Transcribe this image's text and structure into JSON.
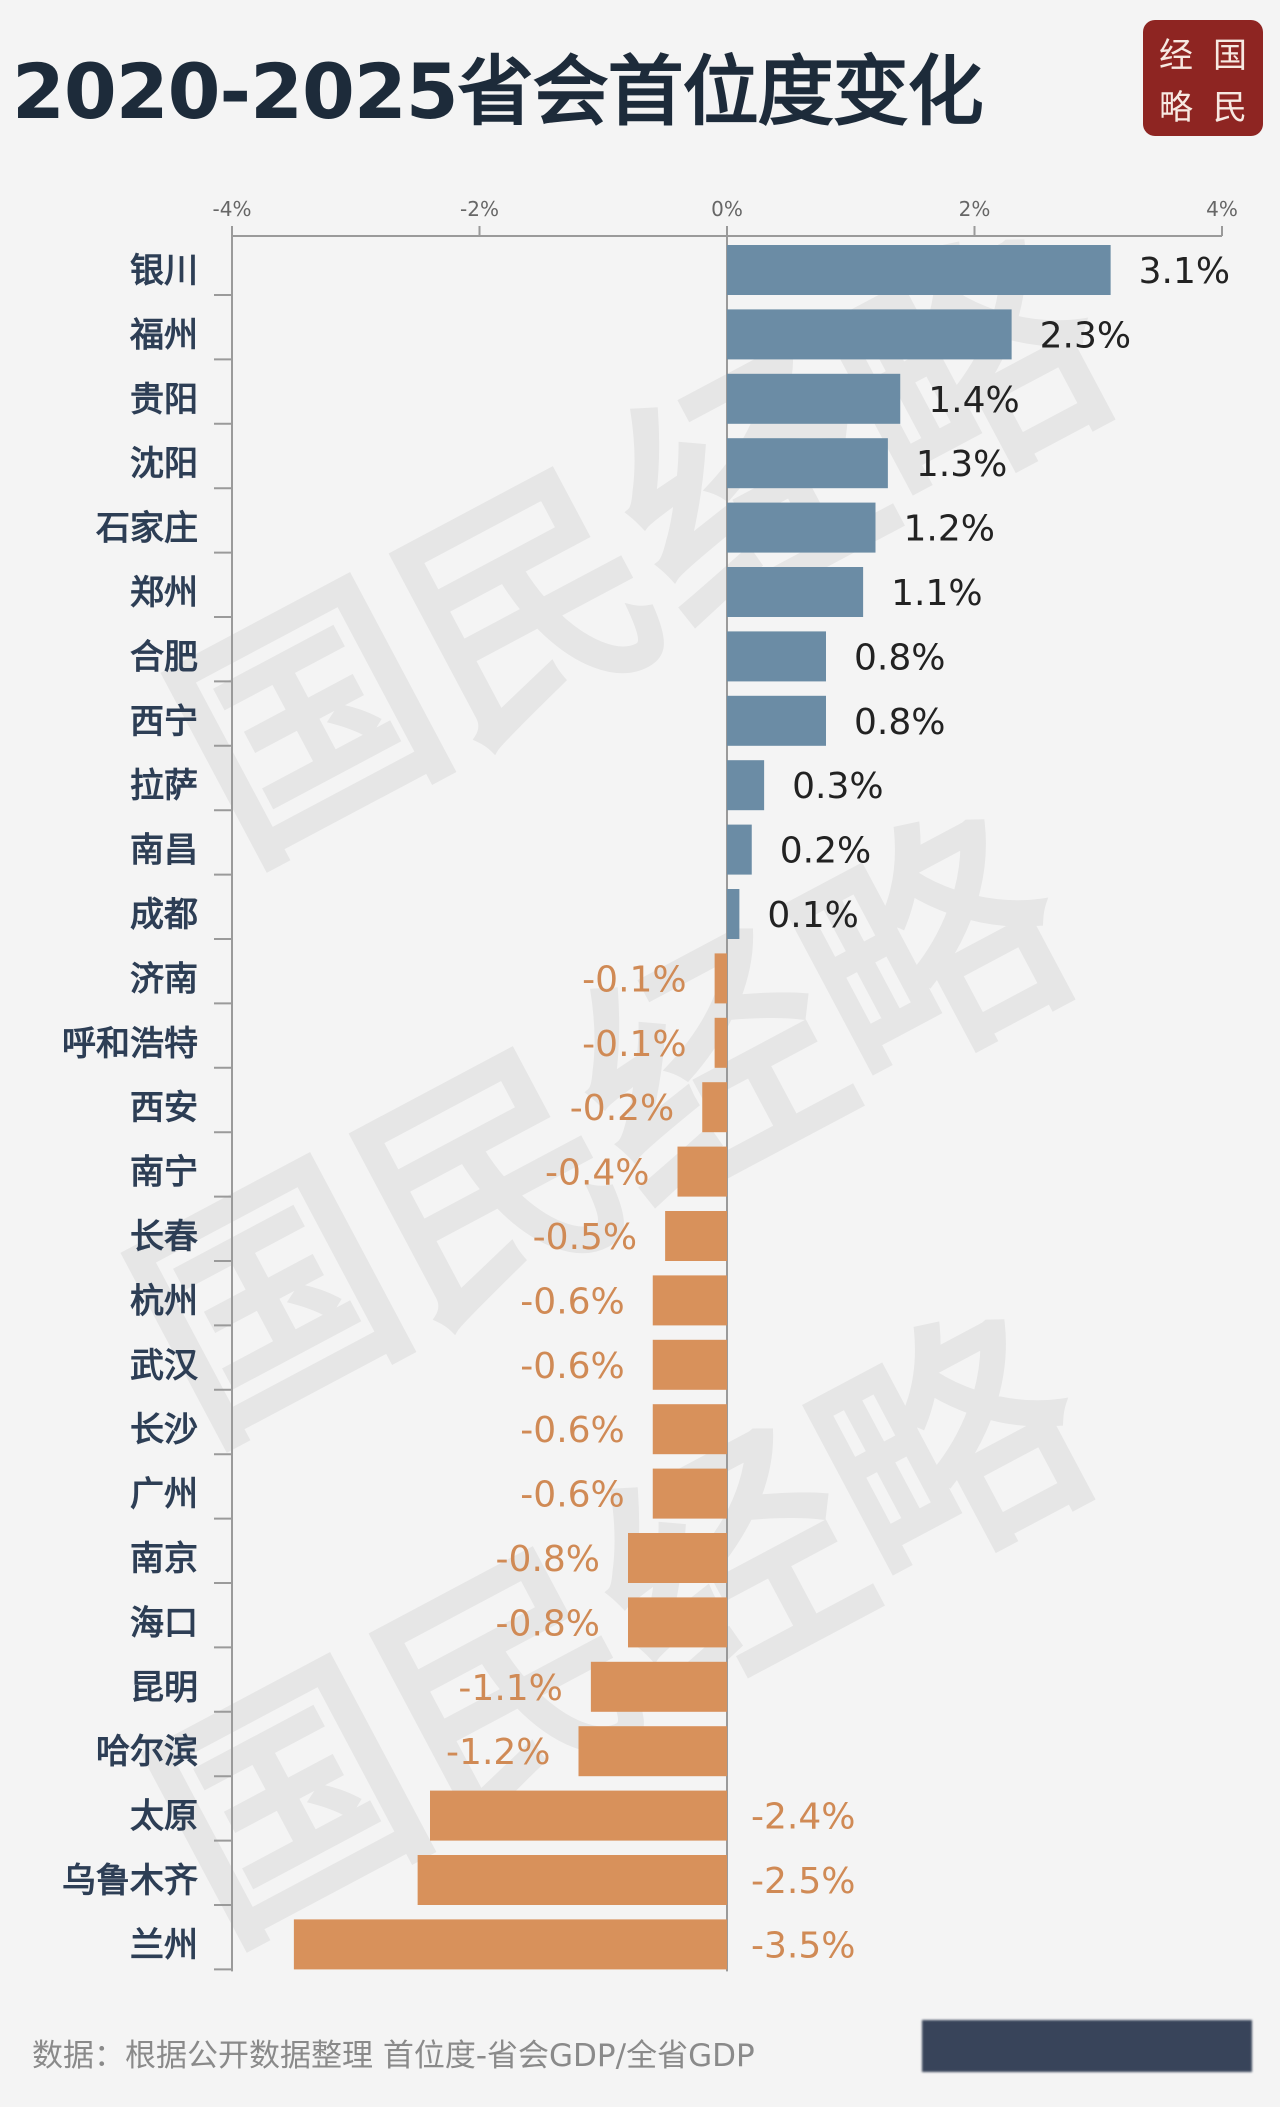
{
  "header": {
    "title": "2020-2025省会首位度变化"
  },
  "logo": {
    "chars": [
      "经",
      "国",
      "略",
      "民"
    ]
  },
  "footer": {
    "source": "数据：根据公开数据整理 首位度-省会GDP/全省GDP"
  },
  "watermark": {
    "text": "国民经略"
  },
  "colors": {
    "positive": "#6b8ca5",
    "negative": "#d8915b",
    "positive_label": "#222222",
    "negative_label": "#d08a55",
    "category": "#2d3e55"
  },
  "chart_data": {
    "type": "bar",
    "orientation": "horizontal",
    "title": "2020-2025省会首位度变化",
    "xlim": [
      -4,
      4
    ],
    "xticks": [
      -4,
      -2,
      0,
      2,
      4
    ],
    "xtick_labels": [
      "-4%",
      "-2%",
      "0%",
      "2%",
      "4%"
    ],
    "value_suffix": "%",
    "grid": false,
    "categories": [
      "银川",
      "福州",
      "贵阳",
      "沈阳",
      "石家庄",
      "郑州",
      "合肥",
      "西宁",
      "拉萨",
      "南昌",
      "成都",
      "济南",
      "呼和浩特",
      "西安",
      "南宁",
      "长春",
      "杭州",
      "武汉",
      "长沙",
      "广州",
      "南京",
      "海口",
      "昆明",
      "哈尔滨",
      "太原",
      "乌鲁木齐",
      "兰州"
    ],
    "values": [
      3.1,
      2.3,
      1.4,
      1.3,
      1.2,
      1.1,
      0.8,
      0.8,
      0.3,
      0.2,
      0.1,
      -0.1,
      -0.1,
      -0.2,
      -0.4,
      -0.5,
      -0.6,
      -0.6,
      -0.6,
      -0.6,
      -0.8,
      -0.8,
      -1.1,
      -1.2,
      -2.4,
      -2.5,
      -3.5
    ],
    "labels": [
      "3.1%",
      "2.3%",
      "1.4%",
      "1.3%",
      "1.2%",
      "1.1%",
      "0.8%",
      "0.8%",
      "0.3%",
      "0.2%",
      "0.1%",
      "-0.1%",
      "-0.1%",
      "-0.2%",
      "-0.4%",
      "-0.5%",
      "-0.6%",
      "-0.6%",
      "-0.6%",
      "-0.6%",
      "-0.8%",
      "-0.8%",
      "-1.1%",
      "-1.2%",
      "-2.4%",
      "-2.5%",
      "-3.5%"
    ]
  }
}
